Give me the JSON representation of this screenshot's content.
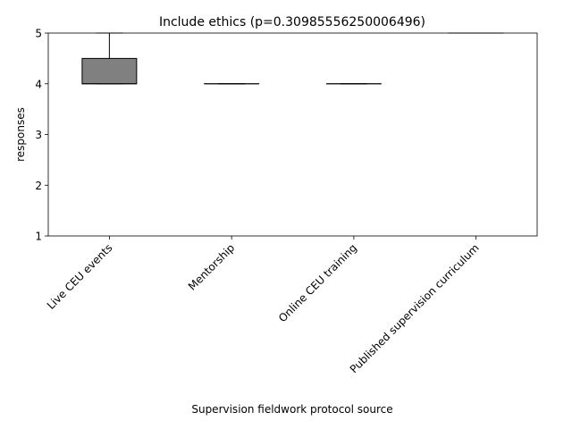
{
  "chart_data": {
    "type": "box",
    "title": "Include ethics (p=0.30985556250006496)",
    "xlabel": "Supervision fieldwork protocol source",
    "ylabel": "responses",
    "ylim": [
      1,
      5
    ],
    "yticks": [
      1,
      2,
      3,
      4,
      5
    ],
    "categories": [
      "Live CEU events",
      "Mentorship",
      "Online CEU training",
      "Published supervision curriculum"
    ],
    "boxes": [
      {
        "min": 4,
        "q1": 4,
        "median": 4,
        "q3": 4.5,
        "max": 5
      },
      {
        "min": 4,
        "q1": 4,
        "median": 4,
        "q3": 4,
        "max": 4
      },
      {
        "min": 4,
        "q1": 4,
        "median": 4,
        "q3": 4,
        "max": 4
      },
      {
        "min": 5,
        "q1": 5,
        "median": 5,
        "q3": 5,
        "max": 5
      }
    ],
    "box_color": "#808080",
    "line_color": "#000000",
    "grid": false
  }
}
